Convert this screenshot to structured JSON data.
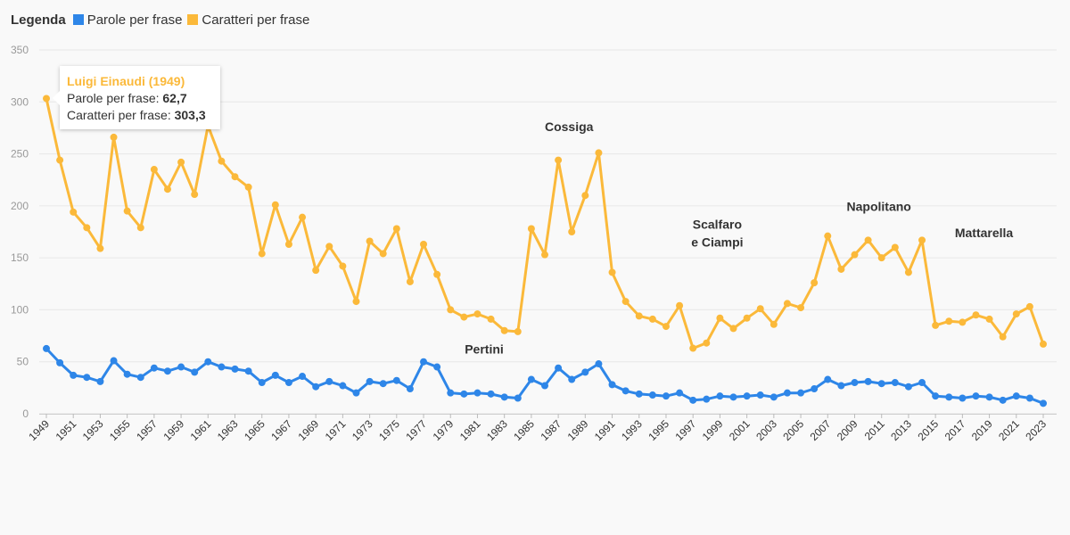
{
  "legend": {
    "title": "Legenda",
    "items": [
      {
        "label": "Parole per frase",
        "color": "#2e86e8"
      },
      {
        "label": "Caratteri per frase",
        "color": "#fbb93a"
      }
    ]
  },
  "tooltip": {
    "title": "Luigi Einaudi (1949)",
    "rows": [
      {
        "label": "Parole per frase:",
        "value": "62,7"
      },
      {
        "label": "Caratteri per frase:",
        "value": "303,3"
      }
    ],
    "title_color": "#fbb93a"
  },
  "chart_data": {
    "type": "line",
    "title": "",
    "xlabel": "",
    "ylabel": "",
    "ylim": [
      0,
      350
    ],
    "yticks": [
      0,
      50,
      100,
      150,
      200,
      250,
      300,
      350
    ],
    "xlim": [
      1949,
      2023
    ],
    "xticks": [
      1949,
      1951,
      1953,
      1955,
      1957,
      1959,
      1961,
      1963,
      1965,
      1967,
      1969,
      1971,
      1973,
      1975,
      1977,
      1979,
      1981,
      1983,
      1985,
      1987,
      1989,
      1991,
      1993,
      1995,
      1997,
      1999,
      2001,
      2003,
      2005,
      2007,
      2009,
      2011,
      2013,
      2015,
      2017,
      2019,
      2021,
      2023
    ],
    "grid": true,
    "legend_position": "top-left",
    "x": [
      1949,
      1950,
      1951,
      1952,
      1953,
      1954,
      1955,
      1956,
      1957,
      1958,
      1959,
      1960,
      1961,
      1962,
      1963,
      1964,
      1965,
      1966,
      1967,
      1968,
      1969,
      1970,
      1971,
      1972,
      1973,
      1974,
      1975,
      1976,
      1977,
      1978,
      1979,
      1980,
      1981,
      1982,
      1983,
      1984,
      1985,
      1986,
      1987,
      1988,
      1989,
      1990,
      1991,
      1992,
      1993,
      1994,
      1995,
      1996,
      1997,
      1998,
      1999,
      2000,
      2001,
      2002,
      2003,
      2004,
      2005,
      2006,
      2007,
      2008,
      2009,
      2010,
      2011,
      2012,
      2013,
      2014,
      2015,
      2016,
      2017,
      2018,
      2019,
      2020,
      2021,
      2022,
      2023
    ],
    "series": [
      {
        "name": "Parole per frase",
        "color": "#2e86e8",
        "values": [
          62.7,
          49,
          37,
          35,
          31,
          51,
          38,
          35,
          44,
          41,
          45,
          40,
          50,
          45,
          43,
          41,
          30,
          37,
          30,
          36,
          26,
          31,
          27,
          20,
          31,
          29,
          32,
          24,
          50,
          45,
          20,
          19,
          20,
          19,
          16,
          15,
          33,
          27,
          44,
          33,
          40,
          48,
          28,
          22,
          19,
          18,
          17,
          20,
          13,
          14,
          17,
          16,
          17,
          18,
          16,
          20,
          20,
          24,
          33,
          27,
          30,
          31,
          29,
          30,
          26,
          30,
          17,
          16,
          15,
          17,
          16,
          13,
          17,
          15,
          10
        ]
      },
      {
        "name": "Caratteri per frase",
        "color": "#fbb93a",
        "values": [
          303.3,
          244,
          194,
          179,
          159,
          266,
          195,
          179,
          235,
          216,
          242,
          211,
          277,
          243,
          228,
          218,
          154,
          201,
          163,
          189,
          138,
          161,
          142,
          108,
          166,
          154,
          178,
          127,
          163,
          134,
          100,
          93,
          96,
          91,
          80,
          79,
          178,
          153,
          244,
          175,
          210,
          251,
          136,
          108,
          94,
          91,
          84,
          104,
          63,
          68,
          92,
          82,
          92,
          101,
          86,
          106,
          102,
          126,
          171,
          139,
          153,
          167,
          150,
          160,
          136,
          167,
          85,
          89,
          88,
          95,
          91,
          74,
          96,
          103,
          67
        ]
      }
    ],
    "annotations": [
      {
        "lines": [
          "Pertini"
        ],
        "x": 1981.5,
        "y": 58
      },
      {
        "lines": [
          "Cossiga"
        ],
        "x": 1987.8,
        "y": 272
      },
      {
        "lines": [
          "Scalfaro",
          "e Ciampi"
        ],
        "x": 1998.8,
        "y": 178
      },
      {
        "lines": [
          "Napolitano"
        ],
        "x": 2010.8,
        "y": 195
      },
      {
        "lines": [
          "Mattarella"
        ],
        "x": 2018.6,
        "y": 170
      }
    ]
  }
}
